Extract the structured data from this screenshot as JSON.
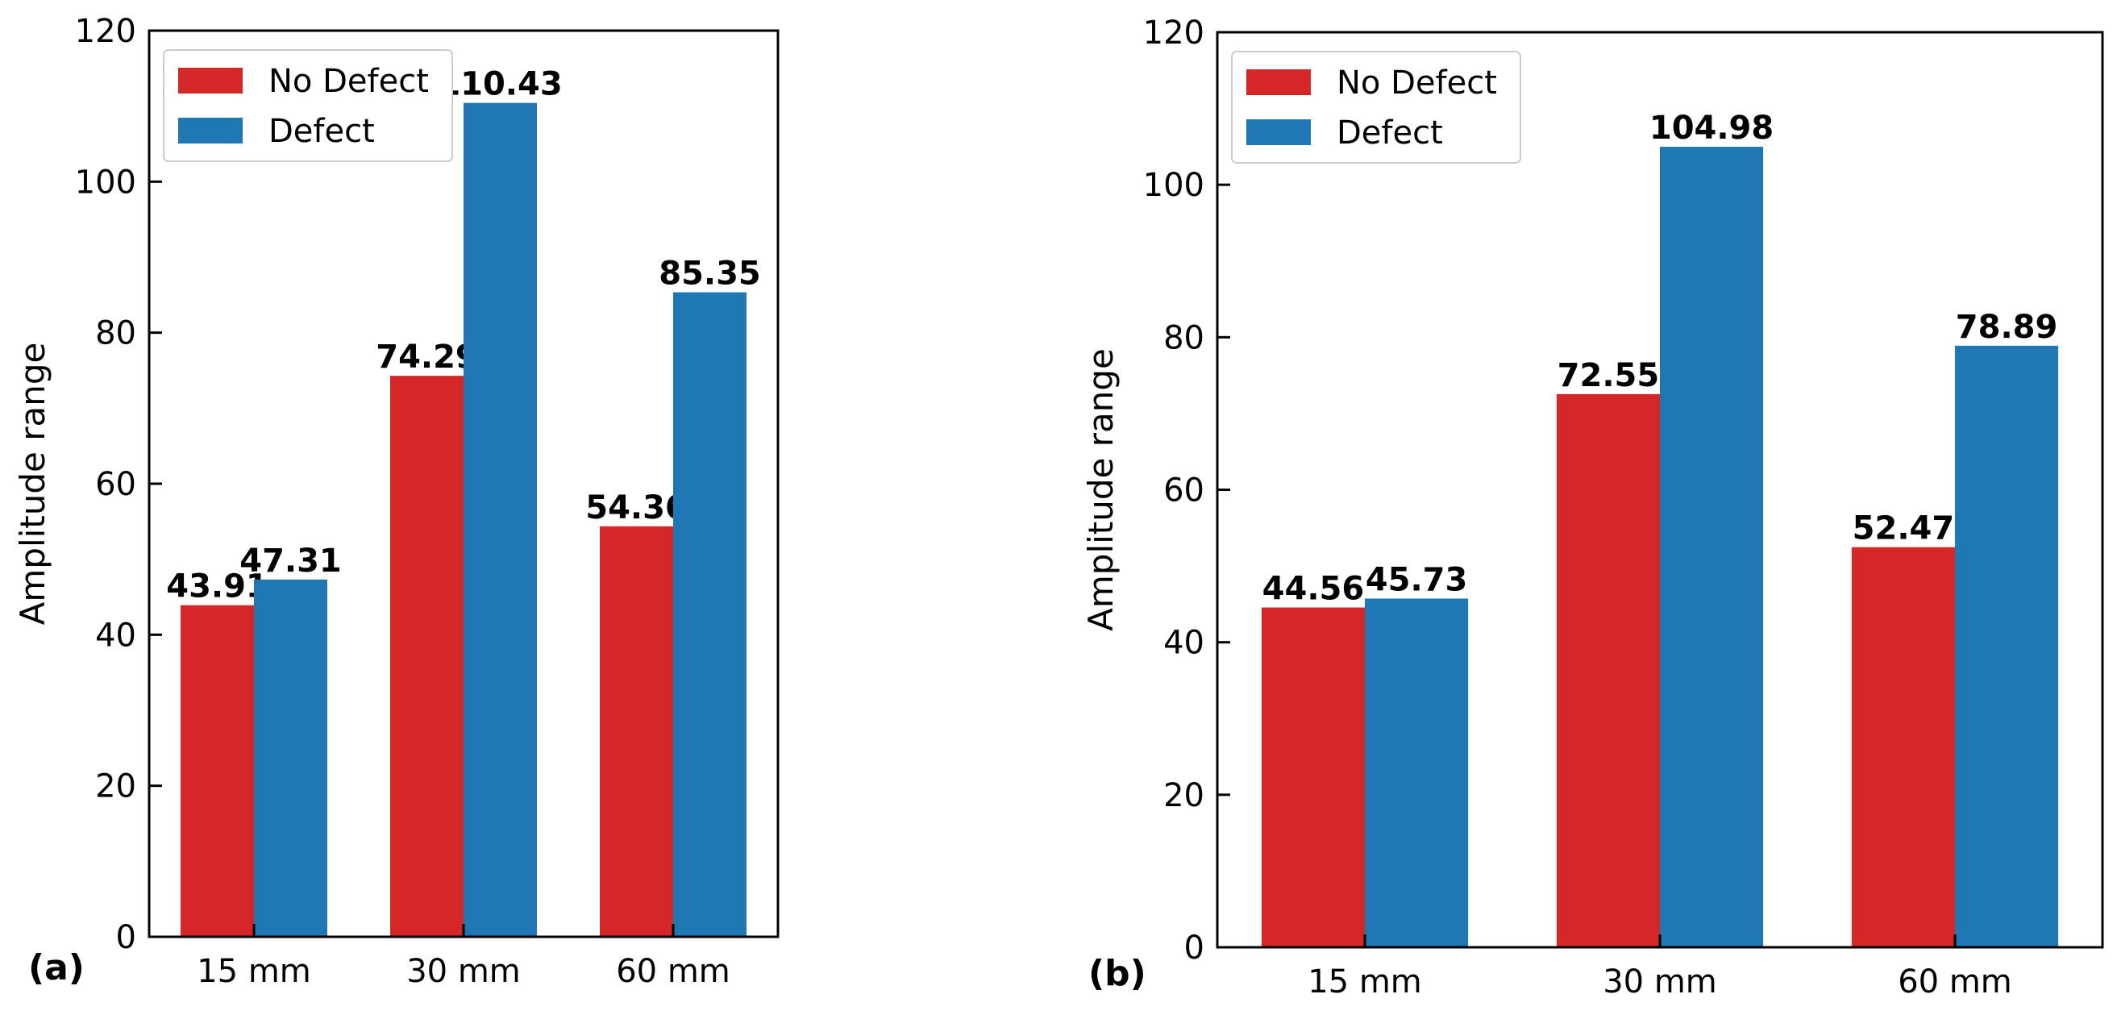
{
  "chart_data": [
    {
      "type": "bar",
      "panel_label": "(a)",
      "categories": [
        "15 mm",
        "30 mm",
        "60 mm"
      ],
      "series": [
        {
          "name": "No Defect",
          "values": [
            43.91,
            74.29,
            54.36
          ],
          "color": "#d62728"
        },
        {
          "name": "Defect",
          "values": [
            47.31,
            110.43,
            85.35
          ],
          "color": "#1f77b4"
        }
      ],
      "data_labels": [
        [
          "43.91",
          "74.29",
          "54.36"
        ],
        [
          "47.31",
          "110.43",
          "85.35"
        ]
      ],
      "ylabel": "Amplitude range",
      "xlabel": "",
      "ylim": [
        0,
        120
      ],
      "yticks": [
        "0",
        "20",
        "40",
        "60",
        "80",
        "100",
        "120"
      ],
      "legend_position": "top-left",
      "grid": false
    },
    {
      "type": "bar",
      "panel_label": "(b)",
      "categories": [
        "15 mm",
        "30 mm",
        "60 mm"
      ],
      "series": [
        {
          "name": "No Defect",
          "values": [
            44.56,
            72.55,
            52.47
          ],
          "color": "#d62728"
        },
        {
          "name": "Defect",
          "values": [
            45.73,
            104.98,
            78.89
          ],
          "color": "#1f77b4"
        }
      ],
      "data_labels": [
        [
          "44.56",
          "72.55",
          "52.47"
        ],
        [
          "45.73",
          "104.98",
          "78.89"
        ]
      ],
      "ylabel": "Amplitude range",
      "xlabel": "",
      "ylim": [
        0,
        120
      ],
      "yticks": [
        "0",
        "20",
        "40",
        "60",
        "80",
        "100",
        "120"
      ],
      "legend_position": "top-left",
      "grid": false
    }
  ]
}
